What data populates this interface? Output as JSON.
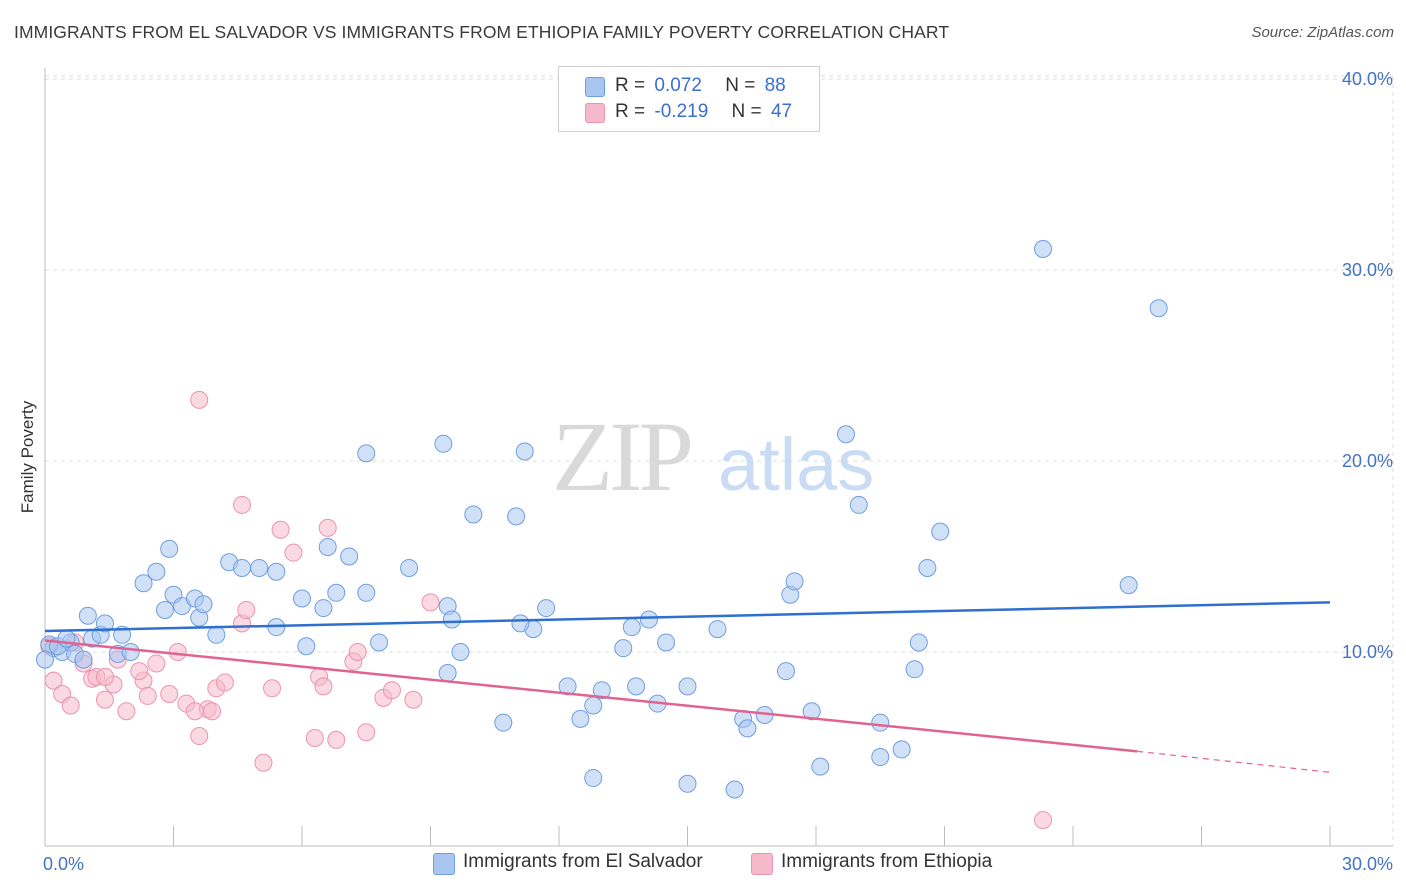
{
  "title": "IMMIGRANTS FROM EL SALVADOR VS IMMIGRANTS FROM ETHIOPIA FAMILY POVERTY CORRELATION CHART",
  "source": "Source: ZipAtlas.com",
  "watermark": {
    "zip": "ZIP",
    "atlas": "atlas"
  },
  "legend": {
    "rows": [
      {
        "r_label": "R =",
        "r_value": "0.072",
        "n_label": "N =",
        "n_value": "88"
      },
      {
        "r_label": "R =",
        "r_value": "-0.219",
        "n_label": "N =",
        "n_value": "47"
      }
    ]
  },
  "bottom_legend": {
    "el_salvador": "Immigrants from El Salvador",
    "ethiopia": "Immigrants from Ethiopia"
  },
  "colors": {
    "blue_fill": "#a9c6f0",
    "blue_stroke": "#6f9ee0",
    "blue_line": "#2e6fcf",
    "pink_fill": "#f6b9cb",
    "pink_stroke": "#ec93ae",
    "pink_line": "#e0648f",
    "grid": "#dcdcdc",
    "tick_text": "#4472c4"
  },
  "chart_data": {
    "type": "scatter",
    "title": "IMMIGRANTS FROM EL SALVADOR VS IMMIGRANTS FROM ETHIOPIA FAMILY POVERTY CORRELATION CHART",
    "xlabel": "",
    "ylabel": "Family Poverty",
    "xlim": [
      0,
      30
    ],
    "ylim": [
      0,
      40
    ],
    "x_tick_labels": [
      "0.0%",
      "30.0%"
    ],
    "y_tick_labels": [
      "10.0%",
      "20.0%",
      "30.0%",
      "40.0%"
    ],
    "y_ticks": [
      10,
      20,
      30,
      40
    ],
    "grid": true,
    "legend_position": "top-center",
    "series": [
      {
        "name": "Immigrants from El Salvador",
        "color": "#a9c6f0",
        "R": 0.072,
        "N": 88,
        "trend": {
          "x0": 0,
          "y0": 11.1,
          "x1": 30,
          "y1": 12.6
        },
        "points": [
          [
            0.2,
            10.2
          ],
          [
            0.4,
            10.0
          ],
          [
            0.6,
            10.5
          ],
          [
            1.0,
            11.9
          ],
          [
            1.1,
            10.7
          ],
          [
            1.3,
            10.9
          ],
          [
            1.4,
            11.5
          ],
          [
            1.7,
            9.9
          ],
          [
            1.8,
            10.9
          ],
          [
            2.0,
            10.0
          ],
          [
            2.9,
            15.4
          ],
          [
            2.3,
            13.6
          ],
          [
            2.6,
            14.2
          ],
          [
            2.8,
            12.2
          ],
          [
            3.0,
            13.0
          ],
          [
            3.2,
            12.4
          ],
          [
            3.5,
            12.8
          ],
          [
            3.6,
            11.8
          ],
          [
            3.7,
            12.5
          ],
          [
            4.0,
            10.9
          ],
          [
            4.3,
            14.7
          ],
          [
            4.6,
            14.4
          ],
          [
            5.0,
            14.4
          ],
          [
            5.4,
            14.2
          ],
          [
            5.4,
            11.3
          ],
          [
            6.0,
            12.8
          ],
          [
            6.1,
            10.3
          ],
          [
            6.5,
            12.3
          ],
          [
            6.6,
            15.5
          ],
          [
            6.8,
            13.1
          ],
          [
            7.1,
            15.0
          ],
          [
            7.5,
            13.1
          ],
          [
            7.5,
            20.4
          ],
          [
            7.8,
            10.5
          ],
          [
            8.5,
            14.4
          ],
          [
            9.3,
            20.9
          ],
          [
            9.4,
            8.9
          ],
          [
            10.0,
            17.2
          ],
          [
            9.4,
            12.4
          ],
          [
            9.5,
            11.7
          ],
          [
            9.7,
            10.0
          ],
          [
            10.7,
            6.3
          ],
          [
            11.0,
            17.1
          ],
          [
            11.4,
            11.2
          ],
          [
            11.7,
            12.3
          ],
          [
            11.2,
            20.5
          ],
          [
            11.1,
            11.5
          ],
          [
            12.2,
            8.2
          ],
          [
            12.8,
            3.4
          ],
          [
            12.5,
            6.5
          ],
          [
            12.8,
            7.2
          ],
          [
            13.0,
            8.0
          ],
          [
            13.5,
            10.2
          ],
          [
            13.8,
            8.2
          ],
          [
            14.3,
            7.3
          ],
          [
            13.7,
            11.3
          ],
          [
            14.1,
            11.7
          ],
          [
            14.5,
            10.5
          ],
          [
            15.0,
            8.2
          ],
          [
            15.0,
            3.1
          ],
          [
            15.7,
            11.2
          ],
          [
            16.1,
            2.8
          ],
          [
            16.3,
            6.5
          ],
          [
            16.4,
            6.0
          ],
          [
            16.8,
            6.7
          ],
          [
            17.3,
            9.0
          ],
          [
            17.4,
            13.0
          ],
          [
            17.5,
            13.7
          ],
          [
            17.9,
            6.9
          ],
          [
            18.1,
            4.0
          ],
          [
            18.7,
            21.4
          ],
          [
            19.0,
            17.7
          ],
          [
            19.5,
            6.3
          ],
          [
            19.5,
            4.5
          ],
          [
            20.0,
            4.9
          ],
          [
            20.3,
            9.1
          ],
          [
            20.6,
            14.4
          ],
          [
            20.9,
            16.3
          ],
          [
            20.4,
            10.5
          ],
          [
            23.3,
            31.1
          ],
          [
            26.0,
            28.0
          ],
          [
            25.3,
            13.5
          ],
          [
            0.1,
            10.4
          ],
          [
            0.3,
            10.3
          ],
          [
            0.0,
            9.6
          ],
          [
            0.5,
            10.7
          ],
          [
            0.7,
            9.9
          ],
          [
            0.9,
            9.6
          ]
        ]
      },
      {
        "name": "Immigrants from Ethiopia",
        "color": "#f6b9cb",
        "R": -0.219,
        "N": 47,
        "trend": {
          "x0": 0,
          "y0": 10.6,
          "x1": 25.5,
          "y1": 4.8
        },
        "trend_dashed": {
          "x0": 25.5,
          "y0": 4.8,
          "x1": 30,
          "y1": 3.7
        },
        "points": [
          [
            0.1,
            10.3
          ],
          [
            0.2,
            8.5
          ],
          [
            0.4,
            7.8
          ],
          [
            0.6,
            7.2
          ],
          [
            0.7,
            10.5
          ],
          [
            0.9,
            9.4
          ],
          [
            1.1,
            8.6
          ],
          [
            1.2,
            8.7
          ],
          [
            1.4,
            7.5
          ],
          [
            1.6,
            8.3
          ],
          [
            1.7,
            9.6
          ],
          [
            1.9,
            6.9
          ],
          [
            2.3,
            8.5
          ],
          [
            2.4,
            7.7
          ],
          [
            2.6,
            9.4
          ],
          [
            2.9,
            7.8
          ],
          [
            3.1,
            10.0
          ],
          [
            3.3,
            7.3
          ],
          [
            3.6,
            5.6
          ],
          [
            3.8,
            7.0
          ],
          [
            3.9,
            6.9
          ],
          [
            4.0,
            8.1
          ],
          [
            4.2,
            8.4
          ],
          [
            4.6,
            11.5
          ],
          [
            4.7,
            12.2
          ],
          [
            5.1,
            4.2
          ],
          [
            5.3,
            8.1
          ],
          [
            5.5,
            16.4
          ],
          [
            5.8,
            15.2
          ],
          [
            6.3,
            5.5
          ],
          [
            6.4,
            8.7
          ],
          [
            6.5,
            8.2
          ],
          [
            6.6,
            16.5
          ],
          [
            6.8,
            5.4
          ],
          [
            7.2,
            9.5
          ],
          [
            7.3,
            10.0
          ],
          [
            7.5,
            5.8
          ],
          [
            7.9,
            7.6
          ],
          [
            8.1,
            8.0
          ],
          [
            8.6,
            7.5
          ],
          [
            9.0,
            12.6
          ],
          [
            3.6,
            23.2
          ],
          [
            4.6,
            17.7
          ],
          [
            3.5,
            6.9
          ],
          [
            1.4,
            8.7
          ],
          [
            2.2,
            9.0
          ],
          [
            23.3,
            1.2
          ]
        ]
      }
    ]
  }
}
